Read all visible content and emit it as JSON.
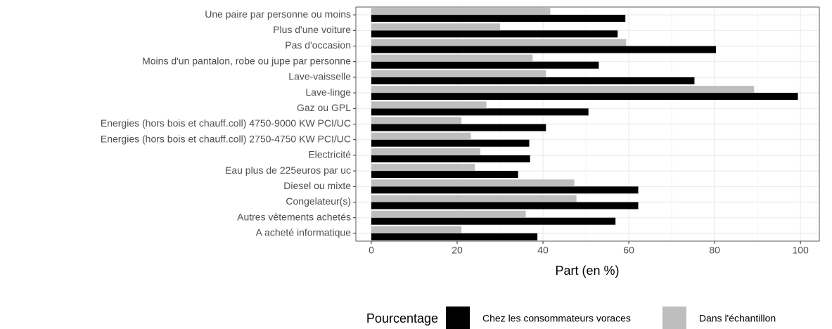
{
  "chart_data": {
    "type": "bar",
    "orientation": "horizontal",
    "x_label": "Part (en %)",
    "legend_title": "Pourcentage",
    "legend_position": "bottom",
    "categories": [
      "Une paire par personne ou moins",
      "Plus d'une voiture",
      "Pas d'occasion",
      "Moins d'un pantalon, robe ou jupe par personne",
      "Lave-vaisselle",
      "Lave-linge",
      "Gaz ou GPL",
      "Energies (hors bois et chauff.coll) 4750-9000 KW PCI/UC",
      "Energies (hors bois et chauff.coll) 2750-4750 KW PCI/UC",
      "Electricité",
      "Eau plus de 225euros par uc",
      "Diesel ou mixte",
      "Congelateur(s)",
      "Autres vêtements achetés",
      "A acheté informatique"
    ],
    "series": [
      {
        "name": "Chez les consommateurs voraces",
        "color": "#000000",
        "values": [
          59.2,
          57.4,
          80.3,
          53.0,
          75.3,
          99.4,
          50.6,
          40.7,
          36.8,
          37.0,
          34.2,
          62.2,
          62.2,
          56.9,
          38.7
        ]
      },
      {
        "name": "Dans l'échantillon",
        "color": "#bebebe",
        "values": [
          41.7,
          30.0,
          59.4,
          37.6,
          40.7,
          89.2,
          26.8,
          21.0,
          23.2,
          25.4,
          24.1,
          47.3,
          47.8,
          36.0,
          21.0
        ]
      }
    ],
    "xlim": [
      -3.6,
      104.4
    ],
    "xticks": [
      0,
      20,
      40,
      60,
      80,
      100
    ],
    "xminor": [
      10,
      30,
      50,
      70,
      90
    ],
    "grid": true
  }
}
